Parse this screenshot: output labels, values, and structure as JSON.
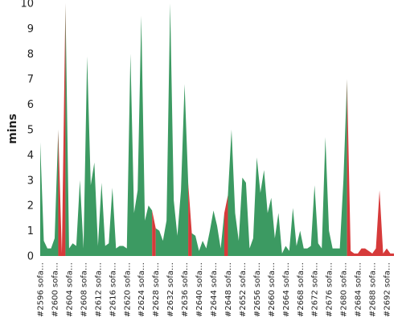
{
  "chart_data": {
    "type": "area",
    "title": "",
    "xlabel": "",
    "ylabel": "mins",
    "ylim": [
      0,
      10
    ],
    "yticks": [
      0,
      1,
      2,
      3,
      4,
      5,
      6,
      7,
      8,
      9,
      10
    ],
    "grid": false,
    "legend": "none",
    "colors": {
      "normal": "#3c9a62",
      "failed": "#d63a3a"
    },
    "x": [
      2596,
      2597,
      2598,
      2599,
      2600,
      2601,
      2602,
      2603,
      2604,
      2605,
      2606,
      2607,
      2608,
      2609,
      2610,
      2611,
      2612,
      2613,
      2614,
      2615,
      2616,
      2617,
      2618,
      2619,
      2620,
      2621,
      2622,
      2623,
      2624,
      2625,
      2626,
      2627,
      2628,
      2629,
      2630,
      2631,
      2632,
      2633,
      2634,
      2635,
      2636,
      2637,
      2638,
      2639,
      2640,
      2641,
      2642,
      2643,
      2644,
      2645,
      2646,
      2647,
      2648,
      2649,
      2650,
      2651,
      2652,
      2653,
      2654,
      2655,
      2656,
      2657,
      2658,
      2659,
      2660,
      2661,
      2662,
      2663,
      2664,
      2665,
      2666,
      2667,
      2668,
      2669,
      2670,
      2671,
      2672,
      2673,
      2674,
      2675,
      2676,
      2677,
      2678,
      2679,
      2680,
      2681,
      2682,
      2683,
      2684,
      2685,
      2686,
      2687,
      2688,
      2689,
      2690,
      2691,
      2692,
      2693,
      2694
    ],
    "values": [
      4.5,
      0.6,
      0.3,
      0.3,
      0.7,
      5.0,
      0.1,
      10.0,
      0.3,
      0.5,
      0.4,
      3.0,
      0.3,
      7.9,
      2.8,
      3.7,
      0.4,
      2.9,
      0.4,
      0.5,
      2.7,
      0.3,
      0.4,
      0.4,
      0.3,
      8.0,
      1.7,
      2.6,
      9.5,
      1.4,
      2.0,
      1.8,
      1.1,
      1.0,
      0.6,
      1.4,
      10.0,
      2.2,
      0.8,
      2.6,
      6.8,
      2.9,
      0.9,
      0.8,
      0.2,
      0.6,
      0.3,
      1.0,
      1.8,
      1.2,
      0.3,
      1.7,
      2.4,
      5.0,
      1.7,
      0.6,
      3.1,
      2.9,
      0.3,
      0.7,
      3.9,
      2.5,
      3.4,
      1.7,
      2.3,
      0.7,
      1.7,
      0.1,
      0.4,
      0.2,
      1.9,
      0.4,
      1.0,
      0.3,
      0.3,
      0.4,
      2.8,
      0.5,
      0.3,
      4.7,
      1.0,
      0.3,
      0.3,
      0.3,
      3.0,
      7.0,
      0.2,
      0.1,
      0.1,
      0.3,
      0.3,
      0.2,
      0.1,
      0.3,
      2.6,
      0.1,
      0.3,
      0.1,
      0.1
    ],
    "status": [
      "ok",
      "ok",
      "ok",
      "ok",
      "ok",
      "failed",
      "failed",
      "ok",
      "ok",
      "ok",
      "ok",
      "ok",
      "ok",
      "ok",
      "ok",
      "ok",
      "ok",
      "ok",
      "ok",
      "ok",
      "ok",
      "ok",
      "ok",
      "ok",
      "ok",
      "ok",
      "ok",
      "ok",
      "ok",
      "ok",
      "ok",
      "failed",
      "ok",
      "ok",
      "ok",
      "ok",
      "ok",
      "ok",
      "ok",
      "ok",
      "ok",
      "failed",
      "ok",
      "ok",
      "ok",
      "ok",
      "ok",
      "ok",
      "ok",
      "ok",
      "ok",
      "failed",
      "ok",
      "ok",
      "ok",
      "ok",
      "ok",
      "ok",
      "ok",
      "ok",
      "ok",
      "ok",
      "ok",
      "ok",
      "ok",
      "ok",
      "ok",
      "ok",
      "ok",
      "ok",
      "ok",
      "ok",
      "ok",
      "ok",
      "ok",
      "ok",
      "ok",
      "ok",
      "ok",
      "ok",
      "ok",
      "ok",
      "ok",
      "ok",
      "ok",
      "failed",
      "failed",
      "failed",
      "failed",
      "failed",
      "failed",
      "failed",
      "failed",
      "failed",
      "failed",
      "failed",
      "failed",
      "failed",
      "failed"
    ],
    "tick_labels": [
      "#2596 sofa…",
      "#2600 sofa…",
      "#2604 sofa…",
      "#2608 sofa…",
      "#2612 sofa…",
      "#2616 sofa…",
      "#2620 sofa…",
      "#2624 sofa…",
      "#2628 sofa…",
      "#2632 sofa…",
      "#2636 sofa…",
      "#2640 sofa…",
      "#2644 sofa…",
      "#2648 sofa…",
      "#2652 sofa…",
      "#2656 sofa…",
      "#2660 sofa…",
      "#2664 sofa…",
      "#2668 sofa…",
      "#2672 sofa…",
      "#2676 sofa…",
      "#2680 sofa…",
      "#2684 sofa…",
      "#2688 sofa…",
      "#2692 sofa…"
    ]
  }
}
